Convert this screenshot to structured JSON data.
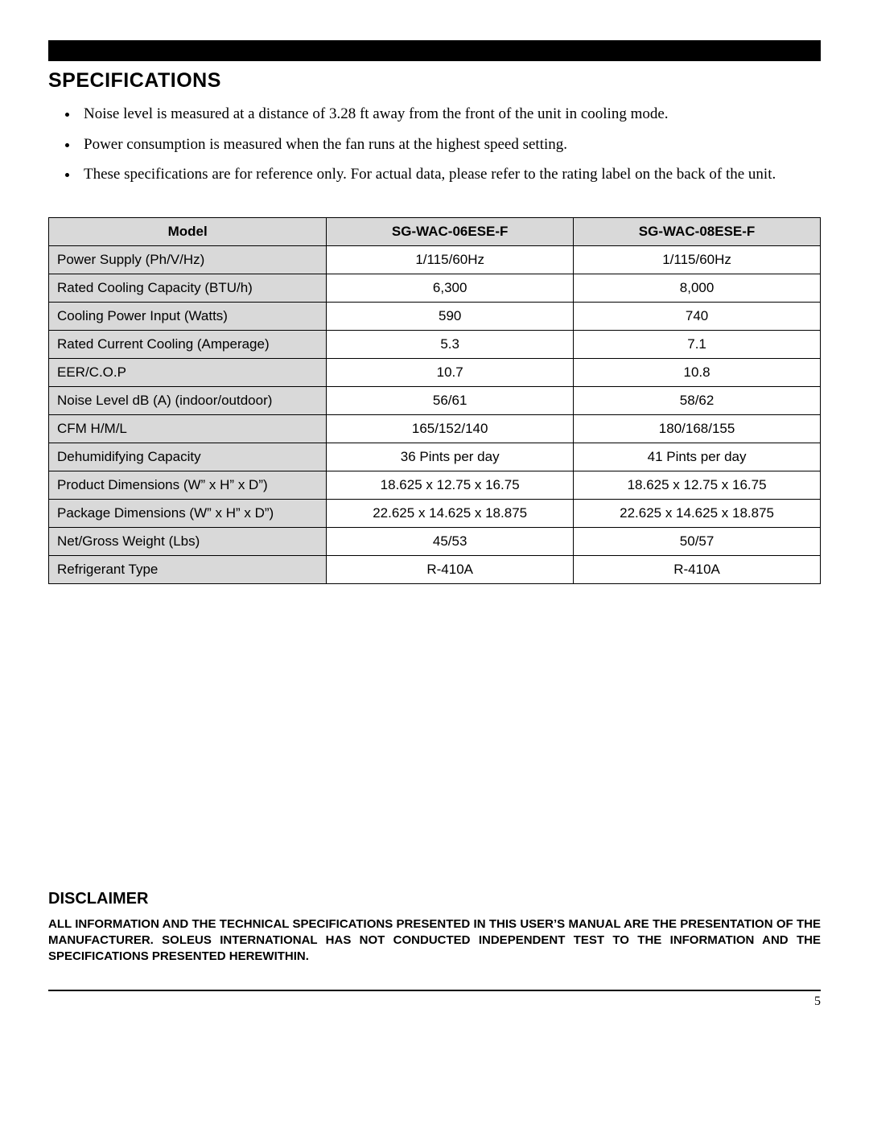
{
  "section_title": "SPECIFICATIONS",
  "bullets": [
    "Noise level is measured at a distance of 3.28 ft away from the front of the unit in cooling mode.",
    "Power consumption is measured when the fan runs at the highest speed setting.",
    "These specifications are for reference only. For actual data, please refer to the rating label on the back of the unit."
  ],
  "table": {
    "header": [
      "Model",
      "SG-WAC-06ESE-F",
      "SG-WAC-08ESE-F"
    ],
    "rows": [
      [
        "Power Supply (Ph/V/Hz)",
        "1/115/60Hz",
        "1/115/60Hz"
      ],
      [
        "Rated Cooling Capacity (BTU/h)",
        "6,300",
        "8,000"
      ],
      [
        "Cooling Power Input (Watts)",
        "590",
        "740"
      ],
      [
        "Rated Current Cooling (Amperage)",
        "5.3",
        "7.1"
      ],
      [
        "EER/C.O.P",
        "10.7",
        "10.8"
      ],
      [
        "Noise Level dB (A) (indoor/outdoor)",
        "56/61",
        "58/62"
      ],
      [
        "CFM H/M/L",
        "165/152/140",
        "180/168/155"
      ],
      [
        "Dehumidifying Capacity",
        "36 Pints per day",
        "41 Pints per day"
      ],
      [
        "Product Dimensions (W” x H” x D”)",
        "18.625 x 12.75 x 16.75",
        "18.625 x 12.75 x 16.75"
      ],
      [
        "Package Dimensions (W” x H” x D”)",
        "22.625 x 14.625 x 18.875",
        "22.625 x 14.625 x 18.875"
      ],
      [
        "Net/Gross Weight (Lbs)",
        "45/53",
        "50/57"
      ],
      [
        "Refrigerant Type",
        "R-410A",
        "R-410A"
      ]
    ]
  },
  "disclaimer_title": "DISCLAIMER",
  "disclaimer_text": "ALL INFORMATION AND THE TECHNICAL SPECIFICATIONS PRESENTED IN THIS USER’S MANUAL ARE THE PRESENTATION OF THE MANUFACTURER.  SOLEUS INTERNATIONAL HAS NOT CONDUCTED INDEPENDENT TEST TO THE INFORMATION AND THE SPECIFICATIONS PRESENTED HEREWITHIN.",
  "page_number": "5",
  "colors": {
    "header_bg": "#000000",
    "row_header_bg": "#d9d9d9",
    "border": "#000000",
    "text": "#000000",
    "background": "#ffffff"
  },
  "fonts": {
    "headings": "Arial",
    "table": "Arial",
    "bullets": "Times New Roman",
    "page_num": "Times New Roman"
  }
}
